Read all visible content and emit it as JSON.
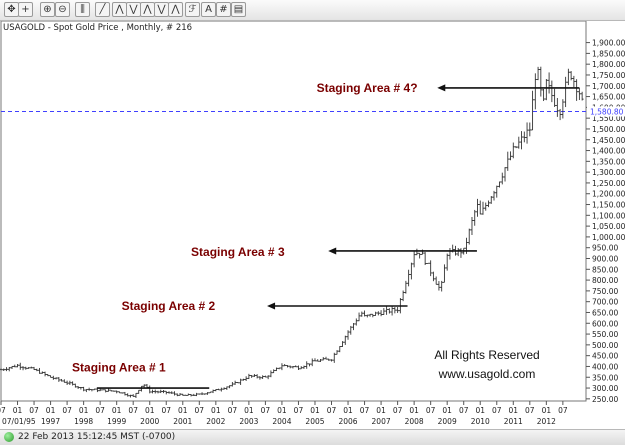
{
  "toolbar": {
    "icons": [
      "move-icon",
      "crosshair-icon",
      "zoom-in-icon",
      "zoom-out-icon",
      "bar-style-icon",
      "draw-line-icon",
      "trend-a-icon",
      "trend-b-icon",
      "trend-c-icon",
      "trend-d-icon",
      "trend-e-icon",
      "fibonacci-icon",
      "text-icon",
      "grid-icon",
      "print-icon"
    ]
  },
  "status": {
    "timestamp": "22 Feb 2013 15:12:45  MST (-0700)"
  },
  "chart_data": {
    "type": "ohlc",
    "title": "USAGOLD - Spot Gold Price , Monthly, # 216",
    "ylim": [
      240,
      2000
    ],
    "yticks": [
      250,
      300,
      350,
      400,
      450,
      500,
      550,
      600,
      650,
      700,
      750,
      800,
      850,
      900,
      950,
      1000,
      1050,
      1100,
      1150,
      1200,
      1250,
      1300,
      1350,
      1400,
      1450,
      1500,
      1550,
      1600,
      1650,
      1700,
      1750,
      1800,
      1850,
      1900
    ],
    "xlim": [
      1995.5,
      2013.2
    ],
    "start_label": "07/01/95",
    "years": [
      "1997",
      "1998",
      "1999",
      "2000",
      "2001",
      "2002",
      "2003",
      "2004",
      "2005",
      "2006",
      "2007",
      "2008",
      "2009",
      "2010",
      "2011",
      "2012"
    ],
    "top_month_ticks": [
      "07",
      "01",
      "07",
      "01",
      "07",
      "01",
      "07",
      "01",
      "07",
      "01",
      "07",
      "01",
      "07",
      "01",
      "07",
      "01",
      "07",
      "01",
      "07",
      "01",
      "07",
      "01",
      "07",
      "01",
      "07",
      "01",
      "07",
      "01",
      "07",
      "01",
      "07",
      "01",
      "07",
      "01",
      "07"
    ],
    "reference_line": {
      "value": 1580.8,
      "label": "1,580.80",
      "color": "#4040ff"
    },
    "monthly_closes": [
      {
        "x": 1995.5,
        "y": 385
      },
      {
        "x": 1996.0,
        "y": 405
      },
      {
        "x": 1996.5,
        "y": 385
      },
      {
        "x": 1997.0,
        "y": 350
      },
      {
        "x": 1997.5,
        "y": 325
      },
      {
        "x": 1998.0,
        "y": 295
      },
      {
        "x": 1998.5,
        "y": 290
      },
      {
        "x": 1999.0,
        "y": 285
      },
      {
        "x": 1999.5,
        "y": 260
      },
      {
        "x": 1999.8,
        "y": 320
      },
      {
        "x": 2000.0,
        "y": 285
      },
      {
        "x": 2000.5,
        "y": 280
      },
      {
        "x": 2001.0,
        "y": 265
      },
      {
        "x": 2001.5,
        "y": 270
      },
      {
        "x": 2002.0,
        "y": 290
      },
      {
        "x": 2002.5,
        "y": 315
      },
      {
        "x": 2003.0,
        "y": 355
      },
      {
        "x": 2003.5,
        "y": 350
      },
      {
        "x": 2004.0,
        "y": 405
      },
      {
        "x": 2004.5,
        "y": 395
      },
      {
        "x": 2005.0,
        "y": 425
      },
      {
        "x": 2005.5,
        "y": 435
      },
      {
        "x": 2006.0,
        "y": 560
      },
      {
        "x": 2006.4,
        "y": 650
      },
      {
        "x": 2006.5,
        "y": 630
      },
      {
        "x": 2007.0,
        "y": 650
      },
      {
        "x": 2007.5,
        "y": 665
      },
      {
        "x": 2008.0,
        "y": 925
      },
      {
        "x": 2008.2,
        "y": 930
      },
      {
        "x": 2008.8,
        "y": 750
      },
      {
        "x": 2009.0,
        "y": 925
      },
      {
        "x": 2009.5,
        "y": 935
      },
      {
        "x": 2009.9,
        "y": 1150
      },
      {
        "x": 2010.0,
        "y": 1100
      },
      {
        "x": 2010.5,
        "y": 1240
      },
      {
        "x": 2011.0,
        "y": 1400
      },
      {
        "x": 2011.5,
        "y": 1500
      },
      {
        "x": 2011.7,
        "y": 1800
      },
      {
        "x": 2011.9,
        "y": 1600
      },
      {
        "x": 2012.0,
        "y": 1710
      },
      {
        "x": 2012.4,
        "y": 1580
      },
      {
        "x": 2012.7,
        "y": 1770
      },
      {
        "x": 2013.0,
        "y": 1670
      },
      {
        "x": 2013.15,
        "y": 1580
      }
    ],
    "annotations": [
      {
        "text": "Staging Area # 1",
        "color": "#7a0000",
        "text_x": 1997.65,
        "text_y": 395,
        "line_x1": 1998.4,
        "line_x2": 2001.8,
        "line_y": 300,
        "arrow": false
      },
      {
        "text": "Staging Area # 2",
        "color": "#7a0000",
        "text_x": 1999.15,
        "text_y": 680,
        "line_x1": 2003.55,
        "line_x2": 2007.8,
        "line_y": 680,
        "arrow": true
      },
      {
        "text": "Staging Area # 3",
        "color": "#7a0000",
        "text_x": 2001.25,
        "text_y": 930,
        "line_x1": 2005.4,
        "line_x2": 2009.9,
        "line_y": 935,
        "arrow": true
      },
      {
        "text": "Staging Area # 4?",
        "color": "#7a0000",
        "text_x": 2005.05,
        "text_y": 1690,
        "line_x1": 2008.7,
        "line_x2": 2013.0,
        "line_y": 1690,
        "arrow": true
      }
    ],
    "watermark": [
      "All Rights Reserved",
      "www.usagold.com"
    ]
  }
}
